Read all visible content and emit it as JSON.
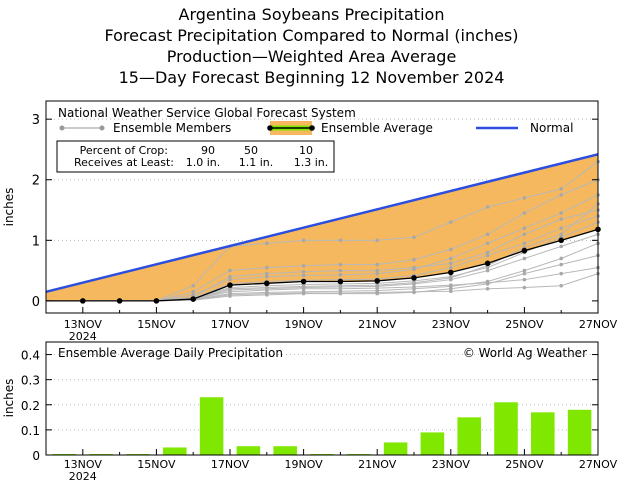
{
  "titles": {
    "line1": "Argentina Soybeans Precipitation",
    "line2": "Forecast Precipitation Compared to Normal (inches)",
    "line3": "Production—Weighted Area Average",
    "line4": "15—Day Forecast Beginning 12 November 2024"
  },
  "colors": {
    "normal_line": "#2b4ee0",
    "fill_band": "#f5b85e",
    "member": "#b8b8b8",
    "average": "#000000",
    "bar": "#80e800",
    "grid": "#bbbbbb"
  },
  "chart_data": [
    {
      "type": "line",
      "title": "Forecast Precipitation Compared to Normal (inches)",
      "xlabel": "",
      "ylabel": "inches",
      "ylim": [
        -0.2,
        3.3
      ],
      "yticks": [
        0,
        1,
        2,
        3
      ],
      "xlim": [
        12,
        27
      ],
      "x": [
        12,
        13,
        14,
        15,
        16,
        17,
        18,
        19,
        20,
        21,
        22,
        23,
        24,
        25,
        26,
        27
      ],
      "tick_labels": [
        {
          "x": 13,
          "label": "13NOV",
          "sub": "2024"
        },
        {
          "x": 15,
          "label": "15NOV",
          "sub": ""
        },
        {
          "x": 17,
          "label": "17NOV",
          "sub": ""
        },
        {
          "x": 19,
          "label": "19NOV",
          "sub": ""
        },
        {
          "x": 21,
          "label": "21NOV",
          "sub": ""
        },
        {
          "x": 23,
          "label": "23NOV",
          "sub": ""
        },
        {
          "x": 25,
          "label": "25NOV",
          "sub": ""
        },
        {
          "x": 27,
          "label": "27NOV",
          "sub": ""
        }
      ],
      "normal": {
        "name": "Normal",
        "x": [
          12,
          27
        ],
        "values": [
          0.15,
          2.42
        ]
      },
      "average": {
        "name": "Ensemble Average",
        "x": [
          13,
          14,
          15,
          16,
          17,
          18,
          19,
          20,
          21,
          22,
          23,
          24,
          25,
          26,
          27
        ],
        "values": [
          0.0,
          0.0,
          0.0,
          0.03,
          0.26,
          0.29,
          0.32,
          0.32,
          0.33,
          0.38,
          0.47,
          0.62,
          0.83,
          1.0,
          1.18
        ]
      },
      "ensemble_members": {
        "name": "Ensemble Members",
        "x": [
          13,
          14,
          15,
          16,
          17,
          18,
          19,
          20,
          21,
          22,
          23,
          24,
          25,
          26,
          27
        ],
        "series": [
          [
            0,
            0,
            0,
            0.02,
            0.1,
            0.12,
            0.13,
            0.13,
            0.14,
            0.15,
            0.16,
            0.2,
            0.22,
            0.25,
            0.45
          ],
          [
            0,
            0,
            0,
            0.03,
            0.15,
            0.18,
            0.2,
            0.2,
            0.21,
            0.23,
            0.26,
            0.3,
            0.35,
            0.45,
            0.55
          ],
          [
            0,
            0,
            0,
            0.05,
            0.22,
            0.25,
            0.27,
            0.28,
            0.29,
            0.33,
            0.4,
            0.55,
            0.8,
            1.05,
            1.3
          ],
          [
            0,
            0,
            0,
            0.1,
            0.35,
            0.4,
            0.42,
            0.43,
            0.45,
            0.52,
            0.7,
            0.95,
            1.2,
            1.45,
            1.75
          ],
          [
            0,
            0,
            0,
            0.15,
            0.5,
            0.55,
            0.58,
            0.6,
            0.6,
            0.68,
            0.85,
            1.1,
            1.45,
            1.75,
            2.0
          ],
          [
            0,
            0,
            0,
            0.25,
            0.9,
            0.95,
            1.0,
            1.0,
            1.0,
            1.05,
            1.3,
            1.55,
            1.7,
            1.85,
            2.3
          ],
          [
            0,
            0,
            0,
            0.02,
            0.18,
            0.2,
            0.22,
            0.23,
            0.24,
            0.28,
            0.35,
            0.5,
            0.7,
            0.9,
            1.1
          ],
          [
            0,
            0,
            0,
            0.04,
            0.28,
            0.32,
            0.34,
            0.35,
            0.36,
            0.42,
            0.55,
            0.75,
            0.95,
            1.2,
            1.4
          ],
          [
            0,
            0,
            0,
            0.03,
            0.2,
            0.22,
            0.24,
            0.25,
            0.26,
            0.3,
            0.38,
            0.58,
            0.88,
            1.1,
            1.6
          ],
          [
            0,
            0,
            0,
            0.01,
            0.08,
            0.1,
            0.12,
            0.12,
            0.12,
            0.14,
            0.2,
            0.28,
            0.45,
            0.6,
            0.75
          ],
          [
            0,
            0,
            0,
            0.06,
            0.4,
            0.45,
            0.48,
            0.5,
            0.5,
            0.55,
            0.62,
            0.8,
            1.1,
            1.35,
            1.5
          ],
          [
            0,
            0,
            0,
            0.02,
            0.12,
            0.14,
            0.15,
            0.16,
            0.17,
            0.2,
            0.24,
            0.32,
            0.5,
            0.7,
            0.95
          ]
        ]
      },
      "legend": {
        "source": "National Weather Service Global Forecast System",
        "members_label": "Ensemble Members",
        "average_label": "Ensemble Average",
        "normal_label": "Normal"
      },
      "percent_table": {
        "row1_label": "Percent of Crop:",
        "row2_label": "Receives at Least:",
        "percents": [
          "90",
          "50",
          "10"
        ],
        "amounts": [
          "1.0 in.",
          "1.1 in.",
          "1.3 in."
        ]
      }
    },
    {
      "type": "bar",
      "title": "Ensemble Average Daily Precipitation",
      "credit": "© World Ag Weather",
      "ylabel": "inches",
      "ylim": [
        0,
        0.45
      ],
      "yticks": [
        "0",
        "0.1",
        "0.2",
        "0.3",
        "0.4"
      ],
      "ytick_values": [
        0,
        0.1,
        0.2,
        0.3,
        0.4
      ],
      "x": [
        13,
        14,
        15,
        16,
        17,
        18,
        19,
        20,
        21,
        22,
        23,
        24,
        25,
        26,
        27
      ],
      "values": [
        0.0,
        0.0,
        0.0,
        0.03,
        0.23,
        0.035,
        0.035,
        0.0,
        0.0,
        0.05,
        0.09,
        0.15,
        0.21,
        0.17,
        0.18
      ]
    }
  ]
}
